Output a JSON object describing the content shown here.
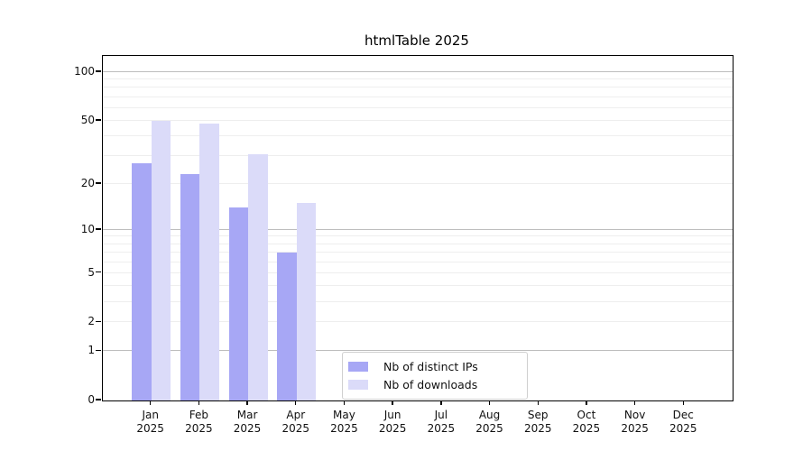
{
  "title": "htmlTable 2025",
  "chart_data": {
    "type": "bar",
    "title": "htmlTable 2025",
    "year_label": "2025",
    "months": [
      "Jan",
      "Feb",
      "Mar",
      "Apr",
      "May",
      "Jun",
      "Jul",
      "Aug",
      "Sep",
      "Oct",
      "Nov",
      "Dec"
    ],
    "series": [
      {
        "name": "Nb of distinct IPs",
        "color": "#a7a7f5",
        "values": [
          27,
          23,
          14,
          7,
          null,
          null,
          null,
          null,
          null,
          null,
          null,
          null
        ]
      },
      {
        "name": "Nb of downloads",
        "color": "#dbdbf9",
        "values": [
          50,
          48,
          31,
          15,
          null,
          null,
          null,
          null,
          null,
          null,
          null,
          null
        ]
      }
    ],
    "y_axis": {
      "scale": "log1p",
      "min": 0,
      "max": 126,
      "ticks": [
        0,
        1,
        2,
        5,
        10,
        20,
        50,
        100
      ],
      "major_gridlines": [
        1,
        10,
        100
      ],
      "minor_gridlines": [
        2,
        3,
        4,
        5,
        6,
        7,
        8,
        9,
        20,
        30,
        40,
        50,
        60,
        70,
        80,
        90
      ]
    },
    "grid": "on",
    "legend_position": "lower-center"
  },
  "legend": {
    "entries": [
      "Nb of distinct IPs",
      "Nb of downloads"
    ]
  },
  "colors": {
    "bar_distinct_ips": "#a7a7f5",
    "bar_downloads": "#dbdbf9",
    "grid_major": "#bdbdbd",
    "grid_minor": "#eeeeee",
    "spine": "#000000",
    "text": "#111111",
    "legend_border": "#cfcfcf",
    "background": "#ffffff"
  }
}
